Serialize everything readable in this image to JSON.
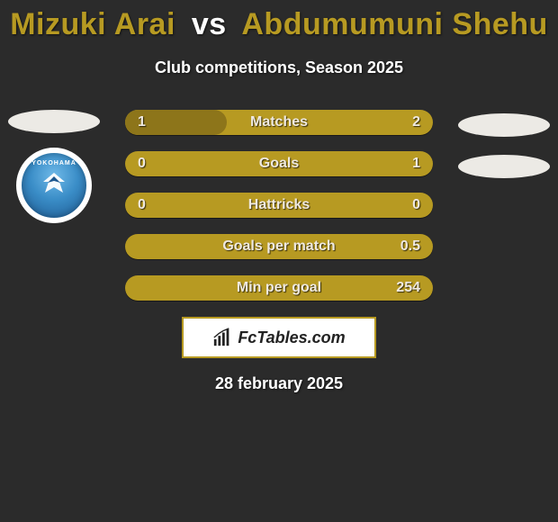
{
  "header": {
    "title_left": "Mizuki Arai",
    "title_vs": "vs",
    "title_right": "Abdumumuni Shehu",
    "title_color_left": "#b79a22",
    "title_color_vs": "#ffffff",
    "title_color_right": "#b79a22",
    "subtitle": "Club competitions, Season 2025"
  },
  "left_logos": {
    "ellipse_color": "#eceae5",
    "badge": {
      "top_text": "YOKOHAMA",
      "ring_color": "#ffffff",
      "gradient_inner": "#6fb9e8",
      "gradient_mid": "#3a8dc7",
      "gradient_outer": "#1c578f"
    }
  },
  "right_logos": {
    "ellipse_color": "#eceae5"
  },
  "bars": {
    "base_color": "#b79a22",
    "fill_color": "#8d751a",
    "text_color": "#efe9e0",
    "rows": [
      {
        "label": "Matches",
        "left_value": "1",
        "right_value": "2",
        "left_fill_pct": 33,
        "right_fill_pct": 0
      },
      {
        "label": "Goals",
        "left_value": "0",
        "right_value": "1",
        "left_fill_pct": 0,
        "right_fill_pct": 0
      },
      {
        "label": "Hattricks",
        "left_value": "0",
        "right_value": "0",
        "left_fill_pct": 0,
        "right_fill_pct": 0
      },
      {
        "label": "Goals per match",
        "left_value": "",
        "right_value": "0.5",
        "left_fill_pct": 0,
        "right_fill_pct": 0
      },
      {
        "label": "Min per goal",
        "left_value": "",
        "right_value": "254",
        "left_fill_pct": 0,
        "right_fill_pct": 0
      }
    ]
  },
  "brand": {
    "text": "FcTables.com",
    "border_color": "#b79a22",
    "icon_color": "#222222"
  },
  "footer": {
    "date": "28 february 2025"
  }
}
